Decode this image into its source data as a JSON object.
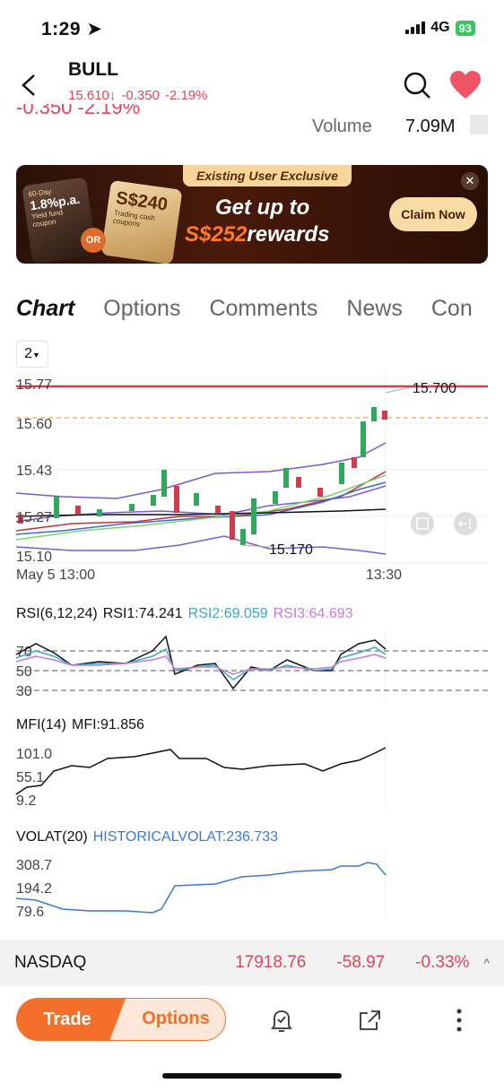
{
  "status": {
    "time": "1:29",
    "network": "4G",
    "battery": "93"
  },
  "header": {
    "ticker": "BULL",
    "price": "15.610",
    "arrow": "↓",
    "change": "-0.350",
    "change_pct": "-2.19%",
    "cut_text": "-0.350 -2.19%"
  },
  "volume": {
    "label": "Volume",
    "value": "7.09M"
  },
  "banner": {
    "tag": "Existing User Exclusive",
    "line1": "Get up to",
    "amount": "S$252",
    "line2_suffix": "rewards",
    "cta": "Claim Now",
    "card1_small": "60-Day",
    "card1_big": "1.8%p.a.",
    "card1_note": "Yield fund coupon",
    "card2_big": "S$240",
    "card2_note": "Trading cash coupons",
    "or": "OR"
  },
  "tabs": [
    "Chart",
    "Options",
    "Comments",
    "News",
    "Con"
  ],
  "period": "2",
  "main_chart": {
    "y_ticks": [
      "15.77",
      "15.60",
      "15.43",
      "15.27",
      "15.10"
    ],
    "x_labels": [
      "May 5 13:00",
      "13:30"
    ],
    "high_label": "15.700",
    "low_label": "15.170"
  },
  "rsi": {
    "title": "RSI(6,12,24)",
    "rsi1": "RSI1:74.241",
    "rsi2": "RSI2:69.059",
    "rsi3": "RSI3:64.693",
    "ticks": [
      "70",
      "50",
      "30"
    ]
  },
  "mfi": {
    "title": "MFI(14)",
    "value": "MFI:91.856",
    "ticks": [
      "101.0",
      "55.1",
      "9.2"
    ]
  },
  "volat": {
    "title": "VOLAT(20)",
    "value": "HISTORICALVOLAT:236.733",
    "ticks": [
      "308.7",
      "194.2",
      "79.6"
    ]
  },
  "index": {
    "name": "NASDAQ",
    "price": "17918.76",
    "change": "-58.97",
    "change_pct": "-0.33%",
    "chevron": "^"
  },
  "bottom": {
    "trade": "Trade",
    "options": "Options"
  },
  "chart_data": [
    {
      "type": "line",
      "title": "",
      "ylim": [
        15.1,
        15.77
      ],
      "x": [
        "May 5 13:00",
        "13:30"
      ],
      "annotations": [
        "15.700",
        "15.170"
      ],
      "series": []
    },
    {
      "type": "line",
      "title": "RSI(6,12,24)",
      "series": [
        {
          "name": "RSI1",
          "values": [
            74.241
          ]
        },
        {
          "name": "RSI2",
          "values": [
            69.059
          ]
        },
        {
          "name": "RSI3",
          "values": [
            64.693
          ]
        }
      ]
    },
    {
      "type": "line",
      "title": "MFI(14)",
      "ylim": [
        9.2,
        101.0
      ],
      "series": [
        {
          "name": "MFI",
          "values": [
            91.856
          ]
        }
      ]
    },
    {
      "type": "line",
      "title": "VOLAT(20)",
      "ylim": [
        79.6,
        308.7
      ],
      "series": [
        {
          "name": "HISTORICALVOLAT",
          "values": [
            236.733
          ]
        }
      ]
    }
  ]
}
